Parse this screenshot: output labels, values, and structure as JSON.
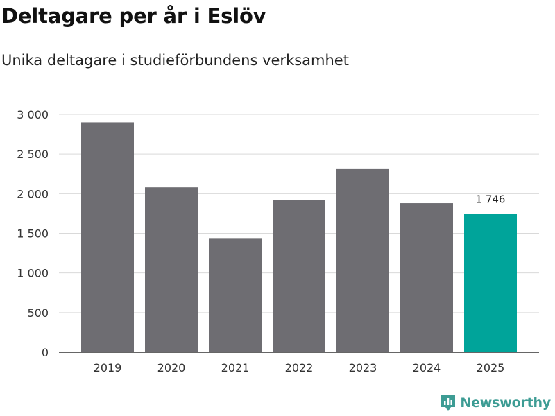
{
  "header": {
    "title": "Deltagare per år i Eslöv",
    "subtitle": "Unika deltagare i studieförbundens verksamhet"
  },
  "colors": {
    "bar": "#6e6d72",
    "highlight": "#00a49a",
    "grid": "#d9d9d9",
    "axis": "#333333",
    "logo": "#3d9c94"
  },
  "chart_data": {
    "type": "bar",
    "categories": [
      "2019",
      "2020",
      "2021",
      "2022",
      "2023",
      "2024",
      "2025"
    ],
    "values": [
      2900,
      2080,
      1440,
      1920,
      2310,
      1880,
      1746
    ],
    "highlight_index": 6,
    "data_labels": [
      {
        "index": 6,
        "text": "1 746"
      }
    ],
    "title": "Deltagare per år i Eslöv",
    "subtitle": "Unika deltagare i studieförbundens verksamhet",
    "xlabel": "",
    "ylabel": "",
    "ylim": [
      0,
      3000
    ],
    "yticks": [
      0,
      500,
      1000,
      1500,
      2000,
      2500,
      3000
    ],
    "ytick_labels": [
      "0",
      "500",
      "1 000",
      "1 500",
      "2 000",
      "2 500",
      "3 000"
    ],
    "grid": true,
    "legend": "none"
  },
  "brand": {
    "name": "Newsworthy",
    "icon": "newsworthy-logo-icon"
  }
}
